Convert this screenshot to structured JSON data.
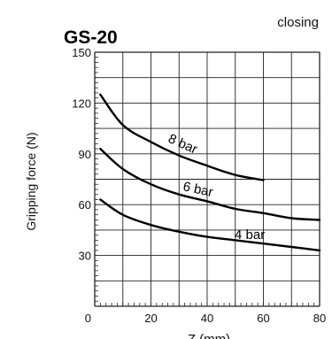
{
  "chart_data": {
    "type": "line",
    "title": "GS-20",
    "subtitle": "closing",
    "xlabel": "Z (mm)",
    "ylabel": "Gripping force (N)",
    "xlim": [
      0,
      80
    ],
    "ylim": [
      0,
      150
    ],
    "x_ticks": [
      0,
      20,
      40,
      60,
      80
    ],
    "y_ticks": [
      30,
      60,
      90,
      120,
      150
    ],
    "x_grid_step": 10,
    "y_grid_step": 15,
    "x_minor_step": 2,
    "y_minor_step": 3,
    "grid": true,
    "series": [
      {
        "name": "8 bar",
        "x": [
          2,
          10,
          20,
          30,
          40,
          50,
          60
        ],
        "y": [
          125,
          107,
          97,
          89,
          83,
          77.5,
          74.5
        ]
      },
      {
        "name": "6 bar",
        "x": [
          2,
          10,
          20,
          30,
          40,
          50,
          60,
          70,
          80
        ],
        "y": [
          93,
          81,
          72,
          66,
          62,
          57.5,
          55,
          52,
          51
        ]
      },
      {
        "name": "4 bar",
        "x": [
          2,
          10,
          20,
          30,
          40,
          50,
          60,
          70,
          80
        ],
        "y": [
          63,
          54,
          48,
          44,
          41,
          39,
          37,
          35,
          33
        ]
      }
    ]
  }
}
